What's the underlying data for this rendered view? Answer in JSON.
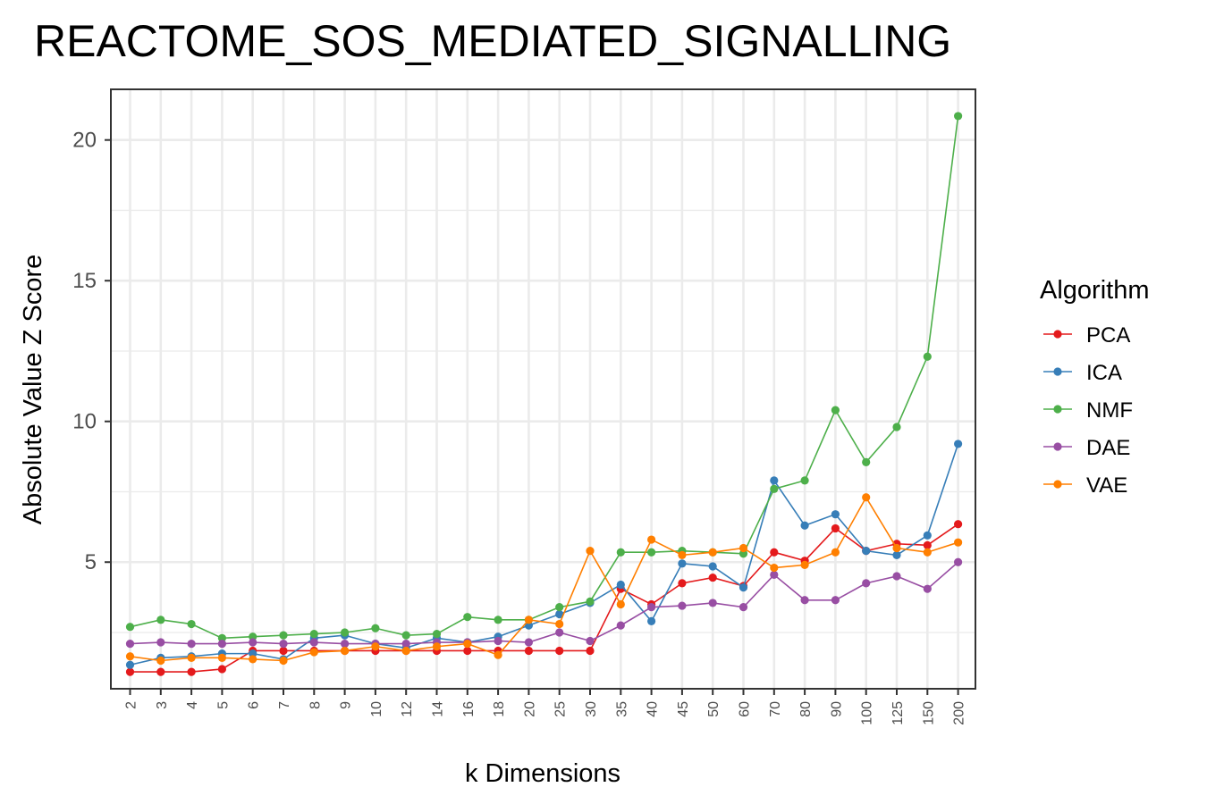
{
  "chart_data": {
    "type": "line",
    "title": "REACTOME_SOS_MEDIATED_SIGNALLING",
    "xlabel": "k Dimensions",
    "ylabel": "Absolute Value Z Score",
    "categories": [
      "2",
      "3",
      "4",
      "5",
      "6",
      "7",
      "8",
      "9",
      "10",
      "12",
      "14",
      "16",
      "18",
      "20",
      "25",
      "30",
      "35",
      "40",
      "45",
      "50",
      "60",
      "70",
      "80",
      "90",
      "100",
      "125",
      "150",
      "200"
    ],
    "ylim": [
      0.5,
      21.8
    ],
    "yticks": [
      5,
      10,
      15,
      20
    ],
    "grid": true,
    "legend": {
      "title": "Algorithm",
      "position": "right"
    },
    "series": [
      {
        "name": "PCA",
        "color": "#e41a1c",
        "values": [
          1.1,
          1.1,
          1.1,
          1.2,
          1.85,
          1.85,
          1.85,
          1.85,
          1.85,
          1.85,
          1.85,
          1.85,
          1.85,
          1.85,
          1.85,
          1.85,
          4.05,
          3.5,
          4.25,
          4.45,
          4.15,
          5.35,
          5.05,
          6.2,
          5.4,
          5.65,
          5.6,
          6.35
        ]
      },
      {
        "name": "ICA",
        "color": "#377eb8",
        "values": [
          1.35,
          1.6,
          1.65,
          1.75,
          1.75,
          1.55,
          2.3,
          2.4,
          2.1,
          1.95,
          2.3,
          2.15,
          2.35,
          2.75,
          3.15,
          3.55,
          4.2,
          2.9,
          4.95,
          4.85,
          4.1,
          7.9,
          6.3,
          6.7,
          5.4,
          5.25,
          5.95,
          9.2
        ]
      },
      {
        "name": "NMF",
        "color": "#4daf4a",
        "values": [
          2.7,
          2.95,
          2.8,
          2.3,
          2.35,
          2.4,
          2.45,
          2.5,
          2.65,
          2.4,
          2.45,
          3.05,
          2.95,
          2.95,
          3.4,
          3.6,
          5.35,
          5.35,
          5.4,
          5.35,
          5.3,
          7.6,
          7.9,
          10.4,
          8.55,
          9.8,
          12.3,
          20.85
        ]
      },
      {
        "name": "DAE",
        "color": "#984ea3",
        "values": [
          2.1,
          2.15,
          2.1,
          2.1,
          2.15,
          2.1,
          2.15,
          2.1,
          2.1,
          2.1,
          2.15,
          2.15,
          2.2,
          2.15,
          2.5,
          2.2,
          2.75,
          3.4,
          3.45,
          3.55,
          3.4,
          4.55,
          3.65,
          3.65,
          4.25,
          4.5,
          4.05,
          5.0
        ]
      },
      {
        "name": "VAE",
        "color": "#ff7f00",
        "values": [
          1.65,
          1.5,
          1.6,
          1.6,
          1.55,
          1.5,
          1.8,
          1.85,
          2.0,
          1.85,
          2.0,
          2.1,
          1.7,
          2.95,
          2.8,
          5.4,
          3.5,
          5.8,
          5.25,
          5.35,
          5.5,
          4.8,
          4.9,
          5.35,
          7.3,
          5.5,
          5.35,
          5.7
        ]
      }
    ]
  }
}
